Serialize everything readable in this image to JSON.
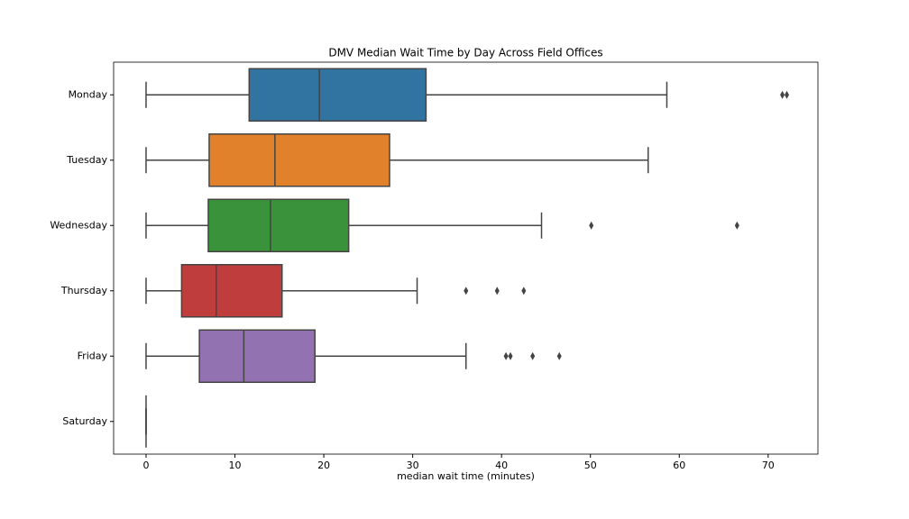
{
  "chart_data": {
    "type": "boxplot",
    "orientation": "horizontal",
    "title": "DMV Median Wait Time by Day Across Field Offices",
    "x_label": "median wait time (minutes)",
    "categories": [
      "Monday",
      "Tuesday",
      "Wednesday",
      "Thursday",
      "Friday",
      "Saturday"
    ],
    "colors": [
      "#3274a1",
      "#e1812c",
      "#3a923a",
      "#c03d3e",
      "#9372b2",
      "#8c613c"
    ],
    "boxes": [
      {
        "min": 0,
        "q1": 11.6,
        "median": 19.5,
        "q3": 31.5,
        "max": 58.6,
        "outliers": [
          71.6,
          72.1
        ]
      },
      {
        "min": 0,
        "q1": 7.1,
        "median": 14.5,
        "q3": 27.4,
        "max": 56.5,
        "outliers": []
      },
      {
        "min": 0,
        "q1": 7.0,
        "median": 14.0,
        "q3": 22.8,
        "max": 44.5,
        "outliers": [
          50.1,
          66.5
        ]
      },
      {
        "min": 0,
        "q1": 4.0,
        "median": 7.9,
        "q3": 15.3,
        "max": 30.5,
        "outliers": [
          36.0,
          39.5,
          42.5
        ]
      },
      {
        "min": 0,
        "q1": 6.0,
        "median": 11.0,
        "q3": 19.0,
        "max": 36.0,
        "outliers": [
          40.5,
          41.0,
          43.5,
          46.5
        ]
      },
      {
        "min": 0,
        "q1": 0,
        "median": 0,
        "q3": 0,
        "max": 0,
        "outliers": []
      }
    ],
    "xlim": [
      -3.65,
      75.6
    ],
    "xticks": [
      0,
      10,
      20,
      30,
      40,
      50,
      60,
      70
    ],
    "grid": false
  }
}
